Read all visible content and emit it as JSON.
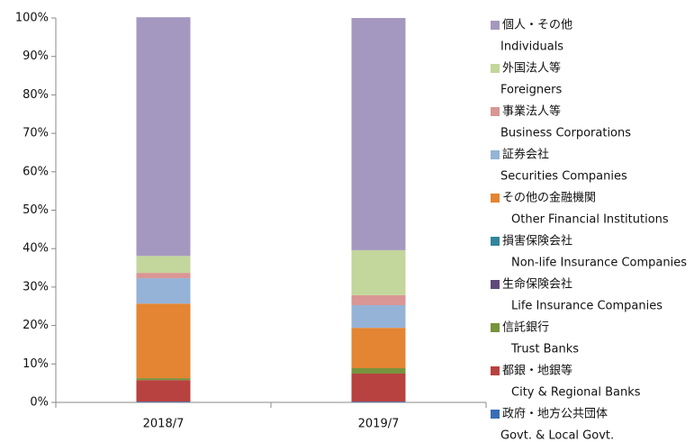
{
  "chart_data": {
    "type": "stacked_bar",
    "categories": [
      "2018/7",
      "2019/7"
    ],
    "ylim": [
      0,
      100
    ],
    "yticks": [
      {
        "value": 0,
        "label": "0%"
      },
      {
        "value": 10,
        "label": "10%"
      },
      {
        "value": 20,
        "label": "20%"
      },
      {
        "value": 30,
        "label": "30%"
      },
      {
        "value": 40,
        "label": "40%"
      },
      {
        "value": 50,
        "label": "50%"
      },
      {
        "value": 60,
        "label": "60%"
      },
      {
        "value": 70,
        "label": "70%"
      },
      {
        "value": 80,
        "label": "80%"
      },
      {
        "value": 90,
        "label": "90%"
      },
      {
        "value": 100,
        "label": "100%"
      }
    ],
    "grid": false,
    "legend": "right",
    "series": [
      {
        "name": "政府・地方公共団体",
        "name_en": "Govt. & Local Govt.",
        "color": "#3a6db5",
        "values": [
          0.2,
          0.2
        ]
      },
      {
        "name": "都銀・地銀等",
        "name_en": "City & Regional Banks",
        "color": "#b8423f",
        "values": [
          5.6,
          7.3
        ]
      },
      {
        "name": "信託銀行",
        "name_en": "Trust Banks",
        "color": "#77933c",
        "values": [
          0.5,
          1.4
        ]
      },
      {
        "name": "生命保険会社",
        "name_en": "Life Insurance Companies",
        "color": "#604a7b",
        "values": [
          0,
          0
        ]
      },
      {
        "name": "損害保険会社",
        "name_en": "Non-life Insurance Companies",
        "color": "#31859c",
        "values": [
          0,
          0
        ]
      },
      {
        "name": "その他の金融機関",
        "name_en": "Other Financial Institutions",
        "color": "#e38533",
        "values": [
          19.4,
          10.5
        ]
      },
      {
        "name": "証券会社",
        "name_en": "Securities Companies",
        "color": "#95b3d7",
        "values": [
          6.6,
          5.9
        ]
      },
      {
        "name": "事業法人等",
        "name_en": "Business Corporations",
        "color": "#d99694",
        "values": [
          1.4,
          2.6
        ]
      },
      {
        "name": "外国法人等",
        "name_en": "Foreigners",
        "color": "#c3d69b",
        "values": [
          4.4,
          11.7
        ]
      },
      {
        "name": "個人・その他",
        "name_en": "Individuals",
        "color": "#a598c0",
        "values": [
          62.1,
          60.4
        ]
      }
    ]
  }
}
